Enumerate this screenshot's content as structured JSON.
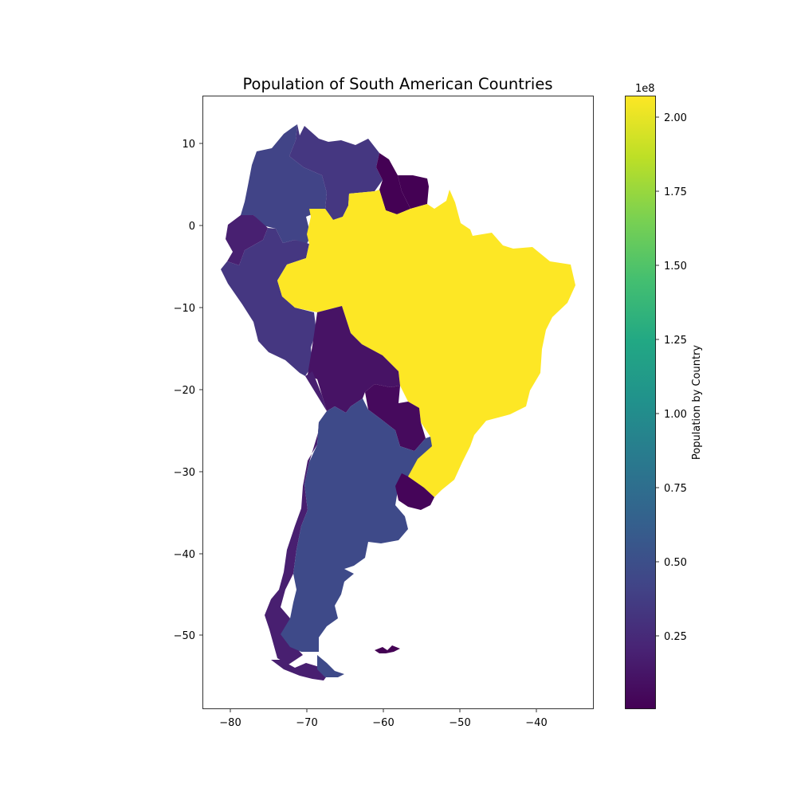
{
  "figure": {
    "title": "Population of South American Countries"
  },
  "map": {
    "x_ticks": [
      "−80",
      "−70",
      "−60",
      "−50",
      "−40"
    ],
    "y_ticks": [
      "10",
      "0",
      "−10",
      "−20",
      "−30",
      "−40",
      "−50"
    ],
    "xlim": [
      -83.7,
      -32.4
    ],
    "ylim": [
      -59.0,
      15.9
    ],
    "projection": "plate carrée (lon/lat)",
    "countries": [
      {
        "name": "Brazil",
        "population": 207000000,
        "color": "#fde725"
      },
      {
        "name": "Colombia",
        "population": 48000000,
        "color": "#414487"
      },
      {
        "name": "Argentina",
        "population": 44000000,
        "color": "#3e4a89"
      },
      {
        "name": "Peru",
        "population": 31000000,
        "color": "#453781"
      },
      {
        "name": "Venezuela",
        "population": 31000000,
        "color": "#453781"
      },
      {
        "name": "Chile",
        "population": 17500000,
        "color": "#481f70"
      },
      {
        "name": "Ecuador",
        "population": 16500000,
        "color": "#482071"
      },
      {
        "name": "Bolivia",
        "population": 11000000,
        "color": "#471365"
      },
      {
        "name": "Paraguay",
        "population": 6900000,
        "color": "#460a5d"
      },
      {
        "name": "Uruguay",
        "population": 3400000,
        "color": "#450559"
      },
      {
        "name": "Guyana",
        "population": 750000,
        "color": "#440154"
      },
      {
        "name": "Suriname",
        "population": 590000,
        "color": "#440154"
      },
      {
        "name": "Falkland Islands",
        "population": 3000,
        "color": "#440154"
      }
    ]
  },
  "colorbar": {
    "label": "Population by Country",
    "exponent": "1e8",
    "ticks": [
      "0.25",
      "0.50",
      "0.75",
      "1.00",
      "1.25",
      "1.50",
      "1.75",
      "2.00"
    ],
    "range": [
      0.0,
      2.07
    ],
    "colormap": "viridis"
  }
}
